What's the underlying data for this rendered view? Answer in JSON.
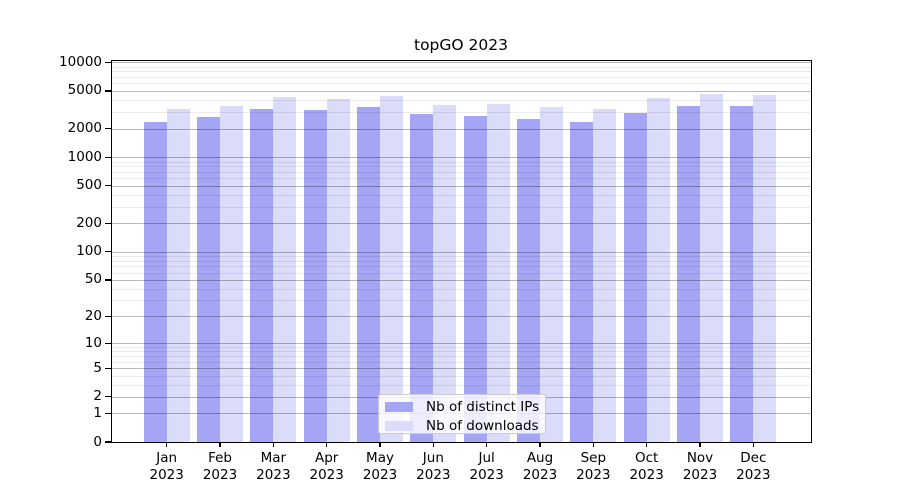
{
  "chart_data": {
    "type": "bar",
    "title": "topGO 2023",
    "categories": [
      "Jan 2023",
      "Feb 2023",
      "Mar 2023",
      "Apr 2023",
      "May 2023",
      "Jun 2023",
      "Jul 2023",
      "Aug 2023",
      "Sep 2023",
      "Oct 2023",
      "Nov 2023",
      "Dec 2023"
    ],
    "x_months": [
      "Jan",
      "Feb",
      "Mar",
      "Apr",
      "May",
      "Jun",
      "Jul",
      "Aug",
      "Sep",
      "Oct",
      "Nov",
      "Dec"
    ],
    "x_year": "2023",
    "series": [
      {
        "name": "Nb of distinct IPs",
        "color": "#a5a5f6",
        "values": [
          2350,
          2650,
          3230,
          3160,
          3340,
          2840,
          2690,
          2550,
          2350,
          2930,
          3470,
          3470
        ]
      },
      {
        "name": "Nb of downloads",
        "color": "#dbdbfa",
        "values": [
          3190,
          3470,
          4300,
          4150,
          4400,
          3520,
          3670,
          3410,
          3190,
          4210,
          4680,
          4490
        ]
      }
    ],
    "yscale": "log1p",
    "yticks": [
      0,
      1,
      2,
      5,
      10,
      20,
      50,
      100,
      200,
      500,
      1000,
      2000,
      5000,
      10000
    ],
    "ylim": [
      0,
      10500
    ],
    "xlabel": "",
    "ylabel": "",
    "grid": "horizontal major+minor",
    "legend_position": "lower center inside plot",
    "colors": {
      "grid_major": "rgba(0,0,0,0.28)",
      "grid_minor": "rgba(0,0,0,0.08)",
      "spine": "#000000",
      "background": "#ffffff",
      "text": "#000000"
    }
  }
}
